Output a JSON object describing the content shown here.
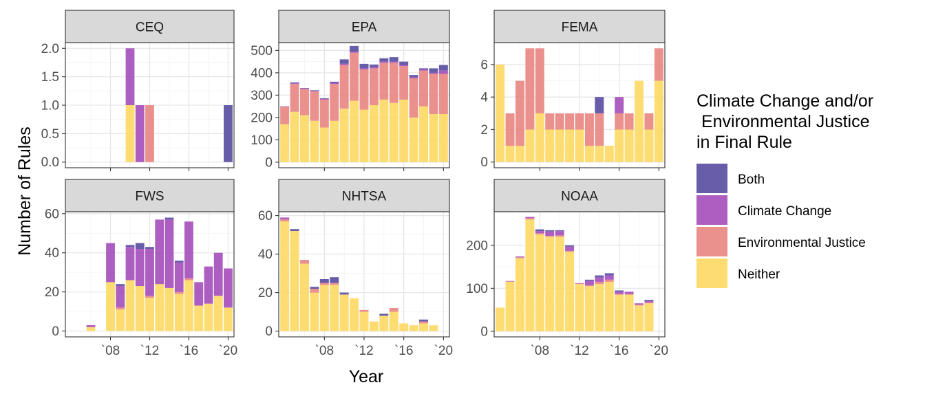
{
  "chart_data": {
    "type": "bar",
    "stacked": true,
    "xlabel": "Year",
    "ylabel": "Number of Rules",
    "grid": true,
    "legend": {
      "title_lines": [
        "Climate Change and/or",
        " Environmental Justice",
        "in Final Rule"
      ],
      "placement": "right",
      "entries": [
        {
          "key": "both",
          "label": "Both",
          "color": "#584ba0"
        },
        {
          "key": "climate",
          "label": "Climate Change",
          "color": "#a44dba"
        },
        {
          "key": "ej",
          "label": "Environmental Justice",
          "color": "#e88582"
        },
        {
          "key": "neither",
          "label": "Neither",
          "color": "#fdd863"
        }
      ]
    },
    "x_ticks": [
      2008,
      2012,
      2016,
      2020
    ],
    "x_tick_labels": [
      "`08",
      "`12",
      "`16",
      "`20"
    ],
    "stack_order": [
      "neither",
      "ej",
      "climate",
      "both"
    ],
    "panels": [
      {
        "name": "CEQ",
        "ylim": [
          -0.1,
          2.1
        ],
        "y_ticks": [
          0,
          0.5,
          1,
          1.5,
          2
        ],
        "y_tick_labels": [
          "0.0",
          "0.5",
          "1.0",
          "1.5",
          "2.0"
        ],
        "years": [
          2010,
          2011,
          2012,
          2020
        ],
        "neither": [
          1,
          0,
          0,
          0
        ],
        "ej": [
          0,
          0,
          1,
          0
        ],
        "climate": [
          1,
          1,
          0,
          0
        ],
        "both": [
          0,
          0,
          0,
          1
        ]
      },
      {
        "name": "EPA",
        "ylim": [
          -25,
          535
        ],
        "y_ticks": [
          0,
          100,
          200,
          300,
          400,
          500
        ],
        "y_tick_labels": [
          "0",
          "100",
          "200",
          "300",
          "400",
          "500"
        ],
        "years": [
          2004,
          2005,
          2006,
          2007,
          2008,
          2009,
          2010,
          2011,
          2012,
          2013,
          2014,
          2015,
          2016,
          2017,
          2018,
          2019,
          2020
        ],
        "neither": [
          170,
          225,
          210,
          185,
          155,
          185,
          240,
          275,
          235,
          255,
          280,
          265,
          280,
          200,
          250,
          215,
          215
        ],
        "ej": [
          78,
          125,
          118,
          132,
          125,
          165,
          195,
          215,
          180,
          165,
          165,
          180,
          150,
          175,
          160,
          180,
          180
        ],
        "climate": [
          2,
          3,
          2,
          3,
          3,
          5,
          5,
          5,
          5,
          5,
          5,
          5,
          5,
          5,
          5,
          5,
          15
        ],
        "both": [
          0,
          4,
          2,
          2,
          3,
          5,
          20,
          25,
          20,
          12,
          15,
          20,
          15,
          10,
          5,
          20,
          25
        ]
      },
      {
        "name": "FEMA",
        "ylim": [
          -0.35,
          7.35
        ],
        "y_ticks": [
          0,
          2,
          4,
          6
        ],
        "y_tick_labels": [
          "0",
          "2",
          "4",
          "6"
        ],
        "years": [
          2004,
          2005,
          2006,
          2007,
          2008,
          2009,
          2010,
          2011,
          2012,
          2013,
          2014,
          2015,
          2016,
          2017,
          2018,
          2019,
          2020
        ],
        "neither": [
          6,
          1,
          1,
          2,
          3,
          2,
          2,
          2,
          2,
          1,
          1,
          1,
          2,
          2,
          5,
          2,
          5
        ],
        "ej": [
          0,
          2,
          4,
          5,
          4,
          1,
          1,
          1,
          1,
          2,
          2,
          0,
          1,
          1,
          0,
          1,
          2
        ],
        "climate": [
          0,
          0,
          0,
          0,
          0,
          0,
          0,
          0,
          0,
          0,
          0,
          0,
          1,
          0,
          0,
          0,
          0
        ],
        "both": [
          0,
          0,
          0,
          0,
          0,
          0,
          0,
          0,
          0,
          0,
          1,
          0,
          0,
          0,
          0,
          0,
          0
        ]
      },
      {
        "name": "FWS",
        "ylim": [
          -3,
          61
        ],
        "y_ticks": [
          0,
          20,
          40,
          60
        ],
        "y_tick_labels": [
          "0",
          "20",
          "40",
          "60"
        ],
        "years": [
          2006,
          2007,
          2008,
          2009,
          2010,
          2011,
          2012,
          2013,
          2014,
          2015,
          2016,
          2017,
          2018,
          2019,
          2020
        ],
        "neither": [
          2,
          0,
          25,
          11,
          26,
          23,
          17,
          24,
          22,
          19,
          26,
          13,
          14,
          18,
          12
        ],
        "ej": [
          0,
          0,
          0,
          1,
          0,
          0,
          1,
          0,
          0,
          1,
          1,
          0,
          0,
          0,
          0
        ],
        "climate": [
          1,
          0,
          20,
          11,
          17,
          19,
          24,
          33,
          35,
          15,
          29,
          12,
          19,
          22,
          20
        ],
        "both": [
          0,
          0,
          0,
          1,
          1,
          3,
          1,
          0,
          1,
          1,
          0,
          0,
          0,
          0,
          0
        ]
      },
      {
        "name": "NHTSA",
        "ylim": [
          -3,
          62
        ],
        "y_ticks": [
          0,
          20,
          40,
          60
        ],
        "y_tick_labels": [
          "0",
          "20",
          "40",
          "60"
        ],
        "years": [
          2004,
          2005,
          2006,
          2007,
          2008,
          2009,
          2010,
          2011,
          2012,
          2013,
          2014,
          2015,
          2016,
          2017,
          2018,
          2019,
          2020
        ],
        "neither": [
          57,
          52,
          35,
          20,
          24,
          24,
          19,
          17,
          10,
          5,
          8,
          10,
          4,
          3,
          4,
          3,
          0
        ],
        "ej": [
          1,
          0,
          2,
          2,
          1,
          1,
          0,
          0,
          1,
          0,
          0,
          2,
          0,
          0,
          1,
          0,
          0
        ],
        "climate": [
          1,
          0,
          0,
          0,
          0,
          0,
          0,
          0,
          0,
          0,
          0,
          0,
          0,
          0,
          0,
          0,
          0
        ],
        "both": [
          0,
          1,
          0,
          1,
          2,
          3,
          1,
          0,
          0,
          0,
          1,
          0,
          0,
          0,
          1,
          0,
          0
        ]
      },
      {
        "name": "NOAA",
        "ylim": [
          -13,
          278
        ],
        "y_ticks": [
          0,
          100,
          200
        ],
        "y_tick_labels": [
          "0",
          "100",
          "200"
        ],
        "years": [
          2004,
          2005,
          2006,
          2007,
          2008,
          2009,
          2010,
          2011,
          2012,
          2013,
          2014,
          2015,
          2016,
          2017,
          2018,
          2019,
          2020
        ],
        "neither": [
          55,
          115,
          170,
          260,
          225,
          220,
          220,
          185,
          110,
          105,
          110,
          115,
          85,
          85,
          60,
          65,
          0
        ],
        "ej": [
          0,
          1,
          2,
          3,
          3,
          2,
          3,
          2,
          1,
          2,
          5,
          5,
          2,
          2,
          2,
          2,
          0
        ],
        "climate": [
          0,
          1,
          2,
          3,
          5,
          10,
          10,
          10,
          1,
          10,
          10,
          10,
          5,
          5,
          3,
          3,
          0
        ],
        "both": [
          0,
          0,
          0,
          0,
          4,
          3,
          2,
          3,
          0,
          3,
          5,
          5,
          3,
          0,
          0,
          3,
          0
        ]
      }
    ]
  }
}
